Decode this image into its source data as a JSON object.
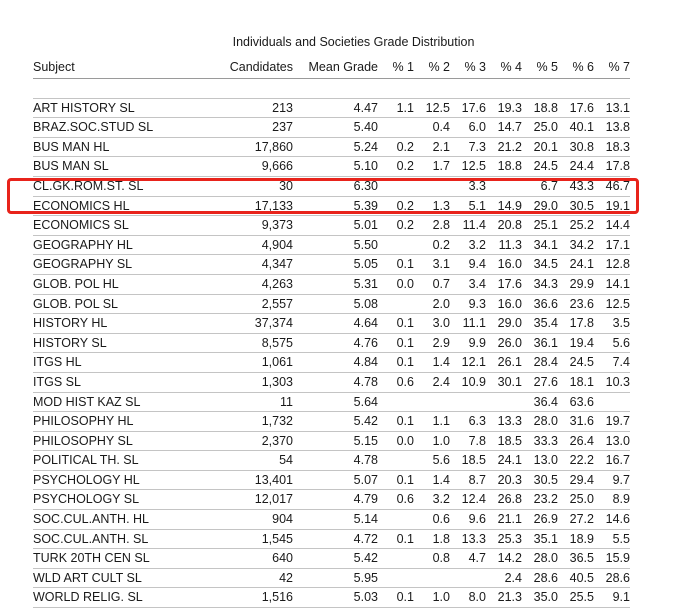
{
  "title": "Individuals and Societies Grade Distribution",
  "columns": [
    "Subject",
    "Candidates",
    "Mean Grade",
    "% 1",
    "% 2",
    "% 3",
    "% 4",
    "% 5",
    "% 6",
    "% 7"
  ],
  "rows": [
    [
      "ART HISTORY SL",
      "213",
      "4.47",
      "1.1",
      "12.5",
      "17.6",
      "19.3",
      "18.8",
      "17.6",
      "13.1"
    ],
    [
      "BRAZ.SOC.STUD SL",
      "237",
      "5.40",
      "",
      "0.4",
      "6.0",
      "14.7",
      "25.0",
      "40.1",
      "13.8"
    ],
    [
      "BUS MAN HL",
      "17,860",
      "5.24",
      "0.2",
      "2.1",
      "7.3",
      "21.2",
      "20.1",
      "30.8",
      "18.3"
    ],
    [
      "BUS MAN SL",
      "9,666",
      "5.10",
      "0.2",
      "1.7",
      "12.5",
      "18.8",
      "24.5",
      "24.4",
      "17.8"
    ],
    [
      "CL.GK.ROM.ST. SL",
      "30",
      "6.30",
      "",
      "",
      "3.3",
      "",
      "6.7",
      "43.3",
      "46.7"
    ],
    [
      "ECONOMICS HL",
      "17,133",
      "5.39",
      "0.2",
      "1.3",
      "5.1",
      "14.9",
      "29.0",
      "30.5",
      "19.1"
    ],
    [
      "ECONOMICS SL",
      "9,373",
      "5.01",
      "0.2",
      "2.8",
      "11.4",
      "20.8",
      "25.1",
      "25.2",
      "14.4"
    ],
    [
      "GEOGRAPHY HL",
      "4,904",
      "5.50",
      "",
      "0.2",
      "3.2",
      "11.3",
      "34.1",
      "34.2",
      "17.1"
    ],
    [
      "GEOGRAPHY SL",
      "4,347",
      "5.05",
      "0.1",
      "3.1",
      "9.4",
      "16.0",
      "34.5",
      "24.1",
      "12.8"
    ],
    [
      "GLOB. POL HL",
      "4,263",
      "5.31",
      "0.0",
      "0.7",
      "3.4",
      "17.6",
      "34.3",
      "29.9",
      "14.1"
    ],
    [
      "GLOB. POL SL",
      "2,557",
      "5.08",
      "",
      "2.0",
      "9.3",
      "16.0",
      "36.6",
      "23.6",
      "12.5"
    ],
    [
      "HISTORY HL",
      "37,374",
      "4.64",
      "0.1",
      "3.0",
      "11.1",
      "29.0",
      "35.4",
      "17.8",
      "3.5"
    ],
    [
      "HISTORY SL",
      "8,575",
      "4.76",
      "0.1",
      "2.9",
      "9.9",
      "26.0",
      "36.1",
      "19.4",
      "5.6"
    ],
    [
      "ITGS HL",
      "1,061",
      "4.84",
      "0.1",
      "1.4",
      "12.1",
      "26.1",
      "28.4",
      "24.5",
      "7.4"
    ],
    [
      "ITGS SL",
      "1,303",
      "4.78",
      "0.6",
      "2.4",
      "10.9",
      "30.1",
      "27.6",
      "18.1",
      "10.3"
    ],
    [
      "MOD HIST KAZ SL",
      "11",
      "5.64",
      "",
      "",
      "",
      "",
      "36.4",
      "63.6",
      ""
    ],
    [
      "PHILOSOPHY HL",
      "1,732",
      "5.42",
      "0.1",
      "1.1",
      "6.3",
      "13.3",
      "28.0",
      "31.6",
      "19.7"
    ],
    [
      "PHILOSOPHY SL",
      "2,370",
      "5.15",
      "0.0",
      "1.0",
      "7.8",
      "18.5",
      "33.3",
      "26.4",
      "13.0"
    ],
    [
      "POLITICAL TH. SL",
      "54",
      "4.78",
      "",
      "5.6",
      "18.5",
      "24.1",
      "13.0",
      "22.2",
      "16.7"
    ],
    [
      "PSYCHOLOGY HL",
      "13,401",
      "5.07",
      "0.1",
      "1.4",
      "8.7",
      "20.3",
      "30.5",
      "29.4",
      "9.7"
    ],
    [
      "PSYCHOLOGY SL",
      "12,017",
      "4.79",
      "0.6",
      "3.2",
      "12.4",
      "26.8",
      "23.2",
      "25.0",
      "8.9"
    ],
    [
      "SOC.CUL.ANTH. HL",
      "904",
      "5.14",
      "",
      "0.6",
      "9.6",
      "21.1",
      "26.9",
      "27.2",
      "14.6"
    ],
    [
      "SOC.CUL.ANTH. SL",
      "1,545",
      "4.72",
      "0.1",
      "1.8",
      "13.3",
      "25.3",
      "35.1",
      "18.9",
      "5.5"
    ],
    [
      "TURK 20TH CEN SL",
      "640",
      "5.42",
      "",
      "0.8",
      "4.7",
      "14.2",
      "28.0",
      "36.5",
      "15.9"
    ],
    [
      "WLD ART CULT SL",
      "42",
      "5.95",
      "",
      "",
      "",
      "2.4",
      "28.6",
      "40.5",
      "28.6"
    ],
    [
      "WORLD RELIG. SL",
      "1,516",
      "5.03",
      "0.1",
      "1.0",
      "8.0",
      "21.3",
      "35.0",
      "25.5",
      "9.1"
    ]
  ],
  "highlight": {
    "color": "#e8231b",
    "rows": [
      "ECONOMICS HL",
      "ECONOMICS SL"
    ]
  }
}
